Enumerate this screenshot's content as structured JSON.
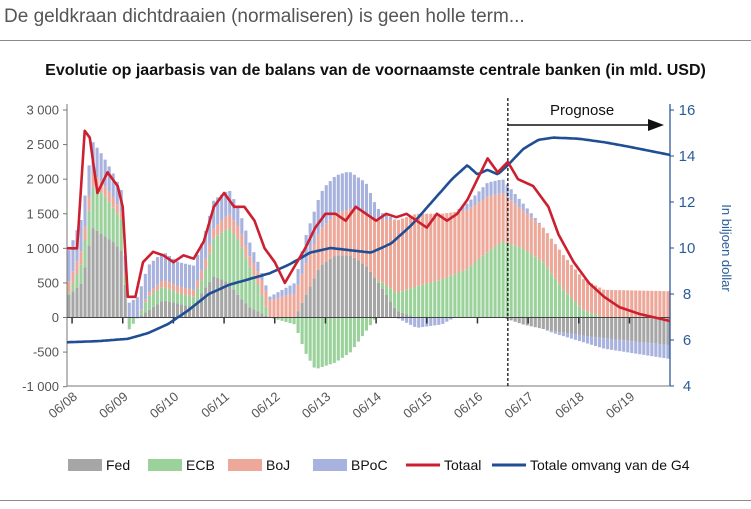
{
  "header": {
    "headline": "De geldkraan dichtdraaien (normaliseren) is geen holle term...",
    "chart_title": "Evolutie op jaarbasis van de balans van de voornaamste centrale banken (in mld. USD)"
  },
  "colors": {
    "fed": "#a6a6a6",
    "ecb": "#9bd19b",
    "boj": "#eda89a",
    "bpoc": "#a8b2de",
    "totaal": "#cc1f2f",
    "g4": "#1f4e94",
    "axis_right": "#2b5c9a"
  },
  "chart_data": {
    "type": "bar",
    "stacked": true,
    "title": "Evolutie op jaarbasis van de balans van de voornaamste centrale banken (in mld. USD)",
    "x_tick_labels": [
      "06/08",
      "06/09",
      "06/10",
      "06/11",
      "06/12",
      "06/13",
      "06/14",
      "06/15",
      "06/16",
      "06/17",
      "06/18",
      "06/19"
    ],
    "x_range_years": [
      2008.4,
      2020.3
    ],
    "ylim_left": [
      -1000,
      3000
    ],
    "y_ticks_left": [
      "3 000",
      "2 500",
      "2 000",
      "1 500",
      "1 000",
      "500",
      "0",
      "-500",
      "-1 000"
    ],
    "y_ticks_left_values": [
      3000,
      2500,
      2000,
      1500,
      1000,
      500,
      0,
      -500,
      -1000
    ],
    "ylabel_right": "In biljoen dollar",
    "ylim_right": [
      4,
      16
    ],
    "y_ticks_right": [
      "16",
      "14",
      "12",
      "10",
      "8",
      "6",
      "4"
    ],
    "y_ticks_right_values": [
      16,
      14,
      12,
      10,
      8,
      6,
      4
    ],
    "forecast": {
      "label": "Prognose",
      "start": "06/17"
    },
    "legend": [
      {
        "key": "fed",
        "label": "Fed",
        "kind": "bar"
      },
      {
        "key": "ecb",
        "label": "ECB",
        "kind": "bar"
      },
      {
        "key": "boj",
        "label": "BoJ",
        "kind": "bar"
      },
      {
        "key": "bpoc",
        "label": "BPoC",
        "kind": "bar"
      },
      {
        "key": "totaal",
        "label": "Totaal",
        "kind": "line"
      },
      {
        "key": "g4",
        "label": "Totale omvang van de G4",
        "kind": "line"
      }
    ],
    "series_anchors": {
      "fed": [
        [
          2008.4,
          300
        ],
        [
          2008.7,
          500
        ],
        [
          2008.9,
          1300
        ],
        [
          2009.1,
          1200
        ],
        [
          2009.3,
          1100
        ],
        [
          2009.5,
          950
        ],
        [
          2009.6,
          0
        ],
        [
          2009.8,
          0
        ],
        [
          2010.0,
          100
        ],
        [
          2010.3,
          250
        ],
        [
          2010.6,
          200
        ],
        [
          2010.9,
          150
        ],
        [
          2011.1,
          400
        ],
        [
          2011.3,
          600
        ],
        [
          2011.6,
          500
        ],
        [
          2011.8,
          300
        ],
        [
          2012.0,
          150
        ],
        [
          2012.4,
          0
        ],
        [
          2012.9,
          0
        ],
        [
          2013.1,
          300
        ],
        [
          2013.4,
          750
        ],
        [
          2013.7,
          900
        ],
        [
          2014.0,
          900
        ],
        [
          2014.3,
          750
        ],
        [
          2014.6,
          450
        ],
        [
          2014.9,
          100
        ],
        [
          2015.3,
          0
        ],
        [
          2016.3,
          0
        ],
        [
          2017.0,
          0
        ],
        [
          2017.4,
          -100
        ],
        [
          2018.0,
          -200
        ],
        [
          2018.5,
          -250
        ],
        [
          2019.0,
          -300
        ],
        [
          2020.3,
          -400
        ]
      ],
      "ecb": [
        [
          2008.4,
          0
        ],
        [
          2008.7,
          300
        ],
        [
          2008.9,
          600
        ],
        [
          2009.1,
          600
        ],
        [
          2009.3,
          500
        ],
        [
          2009.5,
          450
        ],
        [
          2009.6,
          -200
        ],
        [
          2009.8,
          0
        ],
        [
          2010.0,
          200
        ],
        [
          2010.3,
          200
        ],
        [
          2010.6,
          150
        ],
        [
          2010.9,
          150
        ],
        [
          2011.1,
          200
        ],
        [
          2011.3,
          550
        ],
        [
          2011.6,
          800
        ],
        [
          2011.8,
          800
        ],
        [
          2012.0,
          600
        ],
        [
          2012.2,
          350
        ],
        [
          2012.4,
          0
        ],
        [
          2012.9,
          -100
        ],
        [
          2013.1,
          -500
        ],
        [
          2013.3,
          -750
        ],
        [
          2013.7,
          -650
        ],
        [
          2014.0,
          -500
        ],
        [
          2014.3,
          -200
        ],
        [
          2014.5,
          0
        ],
        [
          2014.8,
          200
        ],
        [
          2015.3,
          450
        ],
        [
          2015.8,
          550
        ],
        [
          2016.3,
          700
        ],
        [
          2016.7,
          950
        ],
        [
          2017.0,
          1100
        ],
        [
          2017.4,
          1000
        ],
        [
          2017.8,
          800
        ],
        [
          2018.2,
          400
        ],
        [
          2018.6,
          100
        ],
        [
          2019.0,
          0
        ],
        [
          2020.3,
          0
        ]
      ],
      "boj": [
        [
          2008.4,
          150
        ],
        [
          2008.7,
          200
        ],
        [
          2008.9,
          200
        ],
        [
          2009.1,
          150
        ],
        [
          2009.3,
          150
        ],
        [
          2009.5,
          100
        ],
        [
          2009.6,
          0
        ],
        [
          2009.8,
          0
        ],
        [
          2010.0,
          50
        ],
        [
          2010.3,
          100
        ],
        [
          2010.6,
          100
        ],
        [
          2010.9,
          100
        ],
        [
          2011.1,
          150
        ],
        [
          2011.3,
          150
        ],
        [
          2011.6,
          200
        ],
        [
          2011.8,
          200
        ],
        [
          2012.0,
          150
        ],
        [
          2012.4,
          250
        ],
        [
          2012.9,
          350
        ],
        [
          2013.1,
          450
        ],
        [
          2013.5,
          550
        ],
        [
          2013.9,
          650
        ],
        [
          2014.3,
          750
        ],
        [
          2014.6,
          900
        ],
        [
          2014.9,
          1050
        ],
        [
          2015.3,
          1050
        ],
        [
          2015.8,
          950
        ],
        [
          2016.3,
          850
        ],
        [
          2016.7,
          800
        ],
        [
          2017.0,
          700
        ],
        [
          2017.4,
          550
        ],
        [
          2017.8,
          500
        ],
        [
          2018.2,
          500
        ],
        [
          2018.6,
          450
        ],
        [
          2019.0,
          400
        ],
        [
          2020.3,
          380
        ]
      ],
      "bpoc": [
        [
          2008.4,
          450
        ],
        [
          2008.7,
          450
        ],
        [
          2008.9,
          450
        ],
        [
          2009.1,
          400
        ],
        [
          2009.3,
          350
        ],
        [
          2009.5,
          300
        ],
        [
          2009.6,
          200
        ],
        [
          2009.8,
          300
        ],
        [
          2010.0,
          400
        ],
        [
          2010.3,
          400
        ],
        [
          2010.6,
          350
        ],
        [
          2010.9,
          350
        ],
        [
          2011.1,
          400
        ],
        [
          2011.3,
          400
        ],
        [
          2011.6,
          350
        ],
        [
          2011.8,
          250
        ],
        [
          2012.0,
          200
        ],
        [
          2012.4,
          50
        ],
        [
          2012.9,
          150
        ],
        [
          2013.1,
          400
        ],
        [
          2013.5,
          550
        ],
        [
          2013.9,
          550
        ],
        [
          2014.3,
          450
        ],
        [
          2014.6,
          100
        ],
        [
          2014.9,
          0
        ],
        [
          2015.3,
          -150
        ],
        [
          2015.8,
          -100
        ],
        [
          2016.3,
          100
        ],
        [
          2016.7,
          200
        ],
        [
          2017.0,
          200
        ],
        [
          2017.4,
          100
        ],
        [
          2017.8,
          0
        ],
        [
          2018.2,
          -50
        ],
        [
          2018.6,
          -100
        ],
        [
          2019.0,
          -150
        ],
        [
          2020.3,
          -200
        ]
      ],
      "totaal": [
        [
          2008.4,
          1000
        ],
        [
          2008.6,
          1000
        ],
        [
          2008.75,
          2700
        ],
        [
          2008.85,
          2600
        ],
        [
          2009.0,
          1800
        ],
        [
          2009.2,
          2100
        ],
        [
          2009.4,
          1900
        ],
        [
          2009.5,
          1600
        ],
        [
          2009.6,
          300
        ],
        [
          2009.75,
          300
        ],
        [
          2009.9,
          800
        ],
        [
          2010.1,
          950
        ],
        [
          2010.3,
          900
        ],
        [
          2010.5,
          800
        ],
        [
          2010.7,
          900
        ],
        [
          2010.9,
          850
        ],
        [
          2011.1,
          1100
        ],
        [
          2011.3,
          1600
        ],
        [
          2011.5,
          1800
        ],
        [
          2011.7,
          1600
        ],
        [
          2011.9,
          1600
        ],
        [
          2012.1,
          1400
        ],
        [
          2012.3,
          1000
        ],
        [
          2012.5,
          800
        ],
        [
          2012.7,
          500
        ],
        [
          2012.9,
          750
        ],
        [
          2013.1,
          1000
        ],
        [
          2013.3,
          1300
        ],
        [
          2013.5,
          1500
        ],
        [
          2013.7,
          1500
        ],
        [
          2013.9,
          1400
        ],
        [
          2014.1,
          1600
        ],
        [
          2014.3,
          1500
        ],
        [
          2014.5,
          1400
        ],
        [
          2014.7,
          1500
        ],
        [
          2014.9,
          1450
        ],
        [
          2015.1,
          1500
        ],
        [
          2015.3,
          1400
        ],
        [
          2015.5,
          1300
        ],
        [
          2015.7,
          1500
        ],
        [
          2015.9,
          1400
        ],
        [
          2016.1,
          1500
        ],
        [
          2016.3,
          1700
        ],
        [
          2016.5,
          2000
        ],
        [
          2016.7,
          2300
        ],
        [
          2016.9,
          2100
        ],
        [
          2017.1,
          2250
        ],
        [
          2017.3,
          2000
        ],
        [
          2017.6,
          1900
        ],
        [
          2017.9,
          1600
        ],
        [
          2018.1,
          1200
        ],
        [
          2018.4,
          800
        ],
        [
          2018.7,
          500
        ],
        [
          2019.0,
          300
        ],
        [
          2019.3,
          150
        ],
        [
          2019.7,
          50
        ],
        [
          2020.3,
          -50
        ]
      ],
      "g4": [
        [
          2008.4,
          5.9
        ],
        [
          2009.0,
          5.95
        ],
        [
          2009.6,
          6.05
        ],
        [
          2010.0,
          6.3
        ],
        [
          2010.4,
          6.7
        ],
        [
          2010.8,
          7.3
        ],
        [
          2011.2,
          8.0
        ],
        [
          2011.6,
          8.4
        ],
        [
          2012.0,
          8.65
        ],
        [
          2012.4,
          8.9
        ],
        [
          2012.8,
          9.3
        ],
        [
          2013.2,
          9.8
        ],
        [
          2013.6,
          10.0
        ],
        [
          2014.0,
          9.9
        ],
        [
          2014.4,
          9.8
        ],
        [
          2014.8,
          10.2
        ],
        [
          2015.2,
          11.0
        ],
        [
          2015.6,
          12.0
        ],
        [
          2016.0,
          13.0
        ],
        [
          2016.3,
          13.6
        ],
        [
          2016.5,
          13.2
        ],
        [
          2016.7,
          13.4
        ],
        [
          2016.9,
          13.2
        ],
        [
          2017.1,
          13.6
        ],
        [
          2017.4,
          14.3
        ],
        [
          2017.7,
          14.7
        ],
        [
          2018.0,
          14.8
        ],
        [
          2018.5,
          14.75
        ],
        [
          2019.0,
          14.6
        ],
        [
          2019.5,
          14.4
        ],
        [
          2020.3,
          14.05
        ]
      ]
    }
  }
}
